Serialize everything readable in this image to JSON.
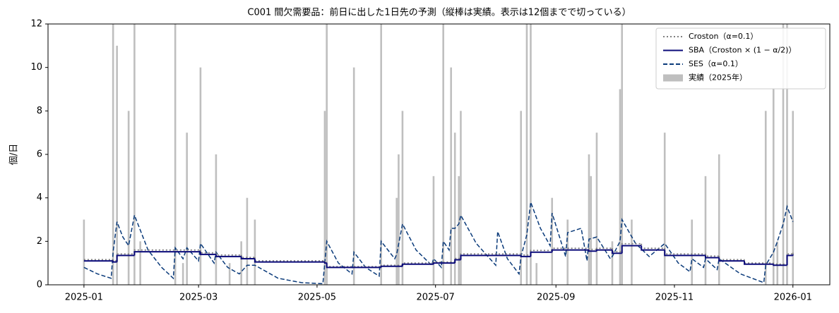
{
  "chart_data": {
    "type": "combo",
    "title": "C001 間欠需要品：前日に出した1日先の予測（縦棒は実績。表示は12個までで切っている）",
    "ylabel": "個/日",
    "xlim": [
      -18.5,
      384
    ],
    "ylim": [
      0,
      12
    ],
    "yticks": [
      0,
      2,
      4,
      6,
      8,
      10,
      12
    ],
    "xticks": [
      {
        "value": 0,
        "label": "2025-01"
      },
      {
        "value": 59,
        "label": "2025-03"
      },
      {
        "value": 120,
        "label": "2025-05"
      },
      {
        "value": 181,
        "label": "2025-07"
      },
      {
        "value": 243,
        "label": "2025-09"
      },
      {
        "value": 304,
        "label": "2025-11"
      },
      {
        "value": 365,
        "label": "2026-01"
      }
    ],
    "legend": "upper right",
    "series": [
      {
        "name": "Croston（α=0.1）",
        "kind": "step",
        "color": "#808080",
        "dash": "dotted",
        "x": [
          0,
          15,
          17,
          26,
          60,
          68,
          81,
          88,
          124,
          125,
          153,
          164,
          180,
          191,
          194,
          225,
          230,
          241,
          260,
          264,
          272,
          277,
          287,
          299,
          320,
          327,
          340,
          355,
          362,
          365
        ],
        "values": [
          1.16,
          1.1,
          1.42,
          1.6,
          1.47,
          1.37,
          1.26,
          1.1,
          1.05,
          0.84,
          0.9,
          1.0,
          1.05,
          1.21,
          1.42,
          1.37,
          1.58,
          1.68,
          1.63,
          1.68,
          1.53,
          1.89,
          1.68,
          1.42,
          1.32,
          1.16,
          1.0,
          0.95,
          1.42,
          1.47
        ]
      },
      {
        "name": "SBA（Croston × (1 − α/2)）",
        "kind": "step",
        "color": "#0b0b7a",
        "dash": "solid",
        "x": [
          0,
          15,
          17,
          26,
          60,
          68,
          81,
          88,
          124,
          125,
          153,
          164,
          180,
          191,
          194,
          225,
          230,
          241,
          260,
          264,
          272,
          277,
          287,
          299,
          320,
          327,
          340,
          355,
          362,
          365
        ],
        "values": [
          1.1,
          1.05,
          1.35,
          1.52,
          1.4,
          1.3,
          1.2,
          1.05,
          1.0,
          0.8,
          0.85,
          0.95,
          1.0,
          1.15,
          1.35,
          1.3,
          1.5,
          1.6,
          1.55,
          1.6,
          1.45,
          1.8,
          1.6,
          1.35,
          1.25,
          1.1,
          0.95,
          0.9,
          1.35,
          1.4
        ]
      },
      {
        "name": "SES（α=0.1）",
        "kind": "line",
        "color": "#0a3a7a",
        "dash": "dashed",
        "x": [
          0,
          7,
          14,
          15,
          17,
          20,
          23,
          26,
          33,
          40,
          46,
          47,
          51,
          53,
          59,
          60,
          67,
          68,
          74,
          80,
          81,
          84,
          88,
          100,
          112,
          123,
          125,
          131,
          138,
          139,
          145,
          152,
          153,
          160,
          161,
          164,
          171,
          179,
          180,
          184,
          185,
          188,
          189,
          191,
          193,
          194,
          202,
          212,
          213,
          218,
          224,
          225,
          228,
          230,
          235,
          240,
          241,
          248,
          249,
          256,
          259,
          260,
          264,
          271,
          272,
          276,
          277,
          284,
          291,
          299,
          306,
          312,
          313,
          319,
          320,
          326,
          327,
          338,
          350,
          351,
          355,
          357,
          360,
          362,
          365
        ],
        "values": [
          0.8,
          0.5,
          0.3,
          1.5,
          2.9,
          2.2,
          1.8,
          3.2,
          1.6,
          0.8,
          0.3,
          1.7,
          1.2,
          1.7,
          1.1,
          1.9,
          1.0,
          1.5,
          0.8,
          0.5,
          0.6,
          0.9,
          0.9,
          0.3,
          0.1,
          0.05,
          2.0,
          1.0,
          0.5,
          1.5,
          0.8,
          0.4,
          2.0,
          1.2,
          1.4,
          2.8,
          1.6,
          0.9,
          1.2,
          0.8,
          2.0,
          1.6,
          2.6,
          2.6,
          2.8,
          3.2,
          1.9,
          0.9,
          2.45,
          1.2,
          0.5,
          1.3,
          2.3,
          3.8,
          2.6,
          1.8,
          3.3,
          1.3,
          2.4,
          2.6,
          1.1,
          2.1,
          2.2,
          1.2,
          1.3,
          2.0,
          3.0,
          1.9,
          1.3,
          1.9,
          1.0,
          0.6,
          1.2,
          0.8,
          1.2,
          0.7,
          1.2,
          0.5,
          0.1,
          0.9,
          1.5,
          2.0,
          2.8,
          3.6,
          2.9
        ]
      },
      {
        "name": "実績（2025年）",
        "kind": "bar",
        "color": "#bfbfbf",
        "x": [
          0,
          15,
          17,
          23,
          26,
          29,
          47,
          51,
          53,
          60,
          68,
          75,
          81,
          84,
          88,
          124,
          125,
          139,
          153,
          161,
          162,
          164,
          180,
          185,
          189,
          191,
          193,
          194,
          225,
          228,
          230,
          233,
          241,
          249,
          260,
          261,
          264,
          272,
          276,
          277,
          282,
          299,
          313,
          320,
          327,
          351,
          355,
          357,
          360,
          362,
          365
        ],
        "values": [
          3,
          12,
          11,
          8,
          12,
          2,
          12,
          1,
          7,
          10,
          6,
          1,
          2,
          4,
          3,
          8,
          12,
          10,
          12,
          4,
          6,
          8,
          5,
          12,
          10,
          7,
          5,
          8,
          8,
          12,
          12,
          1,
          4,
          3,
          6,
          5,
          7,
          2,
          9,
          12,
          3,
          7,
          3,
          5,
          6,
          8,
          9,
          2,
          12,
          12,
          8
        ]
      }
    ]
  }
}
